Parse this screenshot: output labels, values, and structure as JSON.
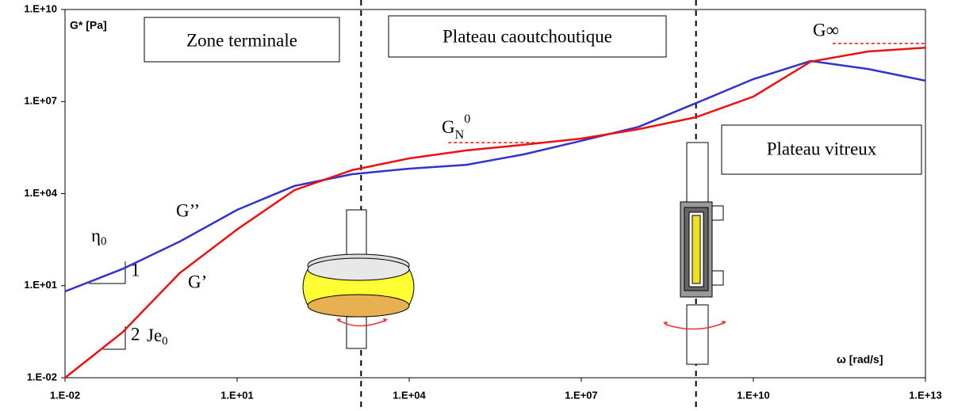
{
  "chart_data": {
    "type": "line",
    "log_x": true,
    "log_y": true,
    "xlim": [
      0.01,
      10000000000000.0
    ],
    "ylim": [
      0.01,
      10000000000.0
    ],
    "xticks": [
      {
        "value": 0.01,
        "label": "1.E-02"
      },
      {
        "value": 10,
        "label": "1.E+01"
      },
      {
        "value": 10000,
        "label": "1.E+04"
      },
      {
        "value": 10000000,
        "label": "1.E+07"
      },
      {
        "value": 10000000000,
        "label": "1.E+10"
      },
      {
        "value": 10000000000000,
        "label": "1.E+13"
      }
    ],
    "yticks": [
      {
        "value": 0.01,
        "label": "1.E-02"
      },
      {
        "value": 10,
        "label": "1.E+01"
      },
      {
        "value": 10000,
        "label": "1.E+04"
      },
      {
        "value": 10000000,
        "label": "1.E+07"
      },
      {
        "value": 10000000000,
        "label": "1.E+10"
      }
    ],
    "y_label": "G* [Pa]",
    "x_label": "ω [rad/s]",
    "x": [
      0.01,
      0.1,
      1,
      10,
      100,
      1000,
      10000,
      100000,
      1000000,
      10000000,
      100000000,
      1000000000,
      10000000000,
      100000000000,
      1000000000000,
      10000000000000
    ],
    "series": [
      {
        "name": "G’’",
        "color": "#3333cc",
        "values": [
          6.5,
          35,
          275,
          2950,
          17800,
          43000,
          65000,
          87000,
          190000,
          525000,
          1500000,
          8900000,
          54000000,
          210000000,
          115000000,
          48000000
        ]
      },
      {
        "name": "G’",
        "color": "#ee1111",
        "values": [
          0.01,
          0.3,
          26,
          680,
          13000,
          58000,
          141000,
          257000,
          390000,
          620000,
          1260000,
          3100000,
          14500000,
          200000000,
          430000000,
          570000000
        ]
      }
    ],
    "zone_boundaries": [
      1450,
      1000000000
    ],
    "reference_lines": [
      {
        "y": 460000,
        "x": [
          48000,
          2200000
        ],
        "color": "#ee1111"
      },
      {
        "y": 780000000,
        "x": [
          240000000000,
          10000000000000
        ],
        "color": "#ee1111"
      }
    ],
    "annotations": {
      "zone_terminale": "Zone terminale",
      "plateau_caoutchoutique": "Plateau caoutchoutique",
      "plateau_vitreux": "Plateau vitreux",
      "g_inf": "G∞",
      "gn0": {
        "text": "G",
        "sub": "N",
        "sup": "0"
      },
      "eta0": {
        "text": "η",
        "sub": "0"
      },
      "je0": {
        "text": "Je",
        "sub": "0"
      },
      "slope_1": "1",
      "slope_2": "2"
    }
  }
}
